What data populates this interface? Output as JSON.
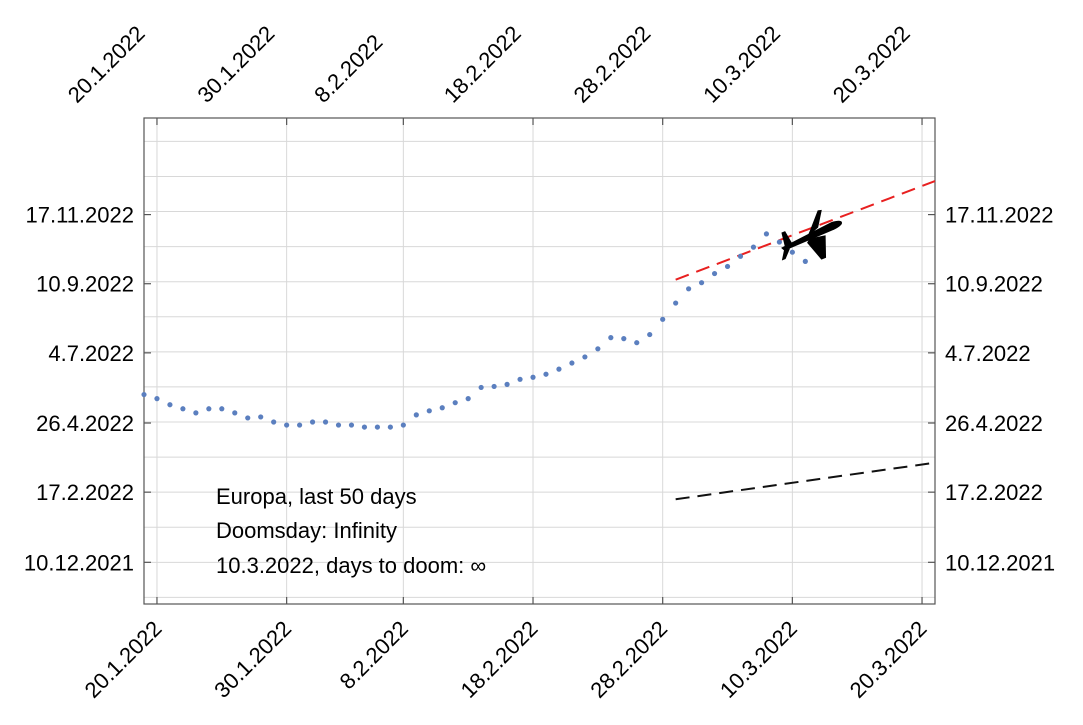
{
  "chart_data": {
    "type": "scatter",
    "title": "",
    "xlabel": "",
    "ylabel": "",
    "x_ticks": [
      "20.1.2022",
      "30.1.2022",
      "8.2.2022",
      "18.2.2022",
      "28.2.2022",
      "10.3.2022",
      "20.3.2022"
    ],
    "y_ticks": [
      "10.12.2021",
      "17.2.2022",
      "26.4.2022",
      "4.7.2022",
      "10.9.2022",
      "17.11.2022"
    ],
    "xlim": [
      "2022-01-19",
      "2022-03-21"
    ],
    "ylim": [
      "2021-10-30",
      "2023-02-20"
    ],
    "grid": true,
    "colors": {
      "points": "#5b7fbf",
      "red_fit": "#e82020",
      "black_fit": "#111111"
    },
    "series": [
      {
        "values": [
          [
            "2022-01-19",
            "2022-05-24"
          ],
          [
            "2022-01-20",
            "2022-05-20"
          ],
          [
            "2022-01-21",
            "2022-05-14"
          ],
          [
            "2022-01-22",
            "2022-05-10"
          ],
          [
            "2022-01-23",
            "2022-05-06"
          ],
          [
            "2022-01-24",
            "2022-05-10"
          ],
          [
            "2022-01-25",
            "2022-05-10"
          ],
          [
            "2022-01-26",
            "2022-05-06"
          ],
          [
            "2022-01-27",
            "2022-05-01"
          ],
          [
            "2022-01-28",
            "2022-05-02"
          ],
          [
            "2022-01-29",
            "2022-04-27"
          ],
          [
            "2022-01-30",
            "2022-04-24"
          ],
          [
            "2022-01-31",
            "2022-04-24"
          ],
          [
            "2022-02-01",
            "2022-04-27"
          ],
          [
            "2022-02-02",
            "2022-04-27"
          ],
          [
            "2022-02-03",
            "2022-04-24"
          ],
          [
            "2022-02-04",
            "2022-04-24"
          ],
          [
            "2022-02-05",
            "2022-04-22"
          ],
          [
            "2022-02-06",
            "2022-04-22"
          ],
          [
            "2022-02-07",
            "2022-04-22"
          ],
          [
            "2022-02-08",
            "2022-04-24"
          ],
          [
            "2022-02-09",
            "2022-05-04"
          ],
          [
            "2022-02-10",
            "2022-05-08"
          ],
          [
            "2022-02-11",
            "2022-05-11"
          ],
          [
            "2022-02-12",
            "2022-05-16"
          ],
          [
            "2022-02-13",
            "2022-05-20"
          ],
          [
            "2022-02-14",
            "2022-05-31"
          ],
          [
            "2022-02-15",
            "2022-06-01"
          ],
          [
            "2022-02-16",
            "2022-06-03"
          ],
          [
            "2022-02-17",
            "2022-06-08"
          ],
          [
            "2022-02-18",
            "2022-06-10"
          ],
          [
            "2022-02-19",
            "2022-06-13"
          ],
          [
            "2022-02-20",
            "2022-06-18"
          ],
          [
            "2022-02-21",
            "2022-06-24"
          ],
          [
            "2022-02-22",
            "2022-06-30"
          ],
          [
            "2022-02-23",
            "2022-07-08"
          ],
          [
            "2022-02-24",
            "2022-07-19"
          ],
          [
            "2022-02-25",
            "2022-07-18"
          ],
          [
            "2022-02-26",
            "2022-07-14"
          ],
          [
            "2022-02-27",
            "2022-07-22"
          ],
          [
            "2022-02-28",
            "2022-08-06"
          ],
          [
            "2022-03-01",
            "2022-08-22"
          ],
          [
            "2022-03-02",
            "2022-09-05"
          ],
          [
            "2022-03-03",
            "2022-09-11"
          ],
          [
            "2022-03-04",
            "2022-09-20"
          ],
          [
            "2022-03-05",
            "2022-09-27"
          ],
          [
            "2022-03-06",
            "2022-10-07"
          ],
          [
            "2022-03-07",
            "2022-10-16"
          ],
          [
            "2022-03-08",
            "2022-10-29"
          ],
          [
            "2022-03-09",
            "2022-10-21"
          ],
          [
            "2022-03-10",
            "2022-10-11"
          ],
          [
            "2022-03-11",
            "2022-10-02"
          ]
        ]
      }
    ],
    "fit_lines": [
      {
        "style": "dashed",
        "color": "#e82020",
        "points": [
          [
            "2022-03-01",
            "2022-09-14"
          ],
          [
            "2022-03-21",
            "2022-12-20"
          ]
        ]
      },
      {
        "style": "dashed",
        "color": "#111111",
        "points": [
          [
            "2022-03-01",
            "2022-02-10"
          ],
          [
            "2022-03-21",
            "2022-03-18"
          ]
        ]
      }
    ],
    "annotations": [
      "Europa, last 50 days",
      "Doomsday: Infinity",
      "10.3.2022, days to doom: ∞"
    ],
    "icon": "airplane-icon"
  }
}
